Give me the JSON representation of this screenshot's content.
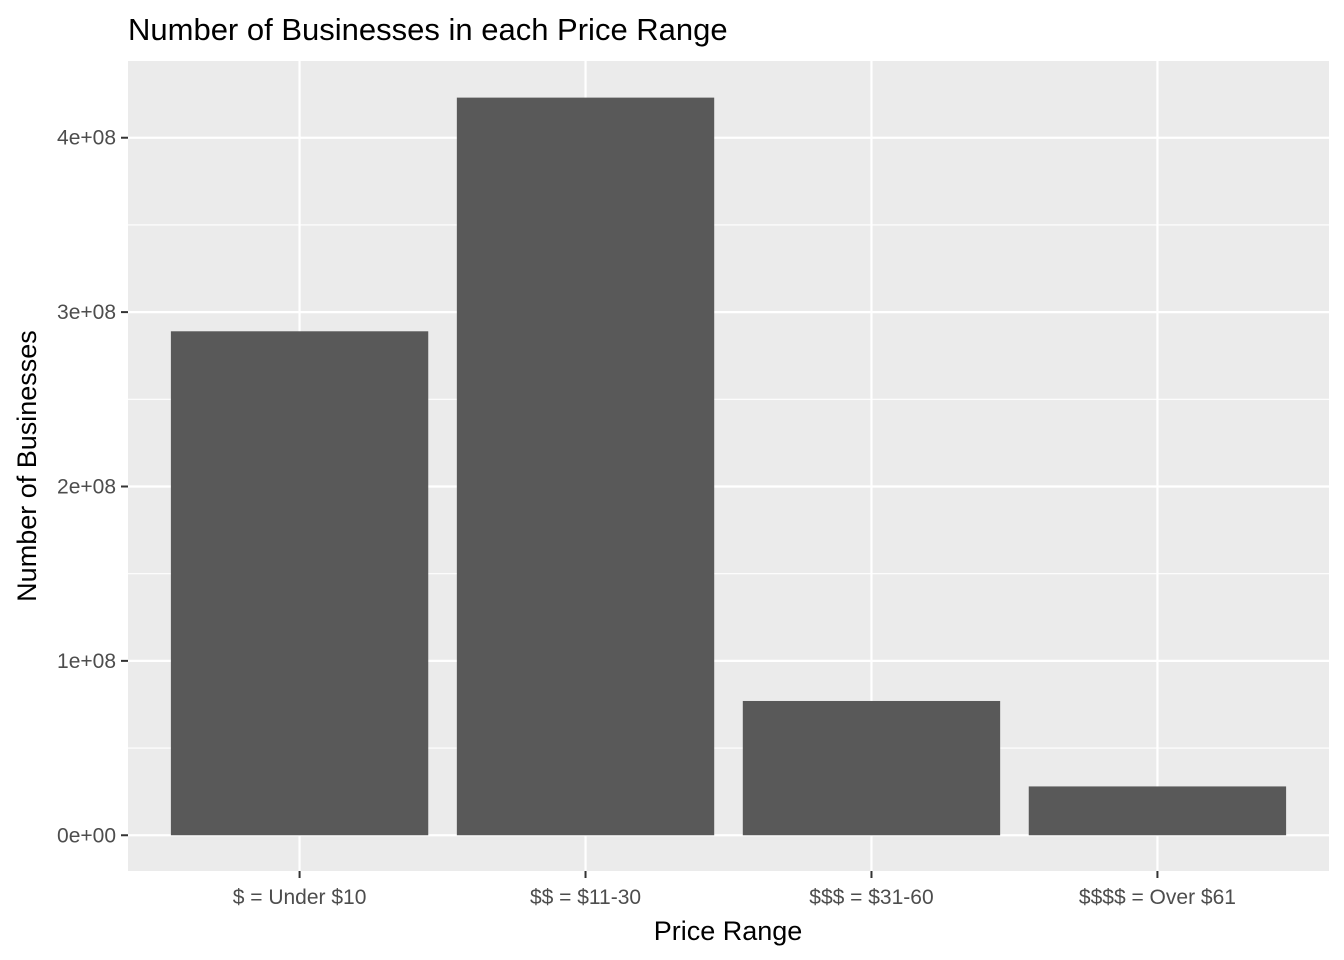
{
  "chart_data": {
    "type": "bar",
    "title": "Number of Businesses in each Price Range",
    "xlabel": "Price Range",
    "ylabel": "Number of Businesses",
    "categories": [
      "$ = Under $10",
      "$$ = $11-30",
      "$$$ = $31-60",
      "$$$$ = Over $61"
    ],
    "values": [
      289000000,
      423000000,
      77000000,
      28000000
    ],
    "ylim": [
      -20500000,
      444000000
    ],
    "yticks": [
      0,
      100000000,
      200000000,
      300000000,
      400000000
    ],
    "ytick_labels": [
      "0e+00",
      "1e+08",
      "2e+08",
      "3e+08",
      "4e+08"
    ],
    "grid": true,
    "colors": {
      "bar": "#595959",
      "panel": "#ebebeb",
      "grid_major": "#ffffff",
      "grid_minor": "#f5f5f5",
      "tick_text": "#4d4d4d",
      "tick_mark": "#333333"
    }
  }
}
